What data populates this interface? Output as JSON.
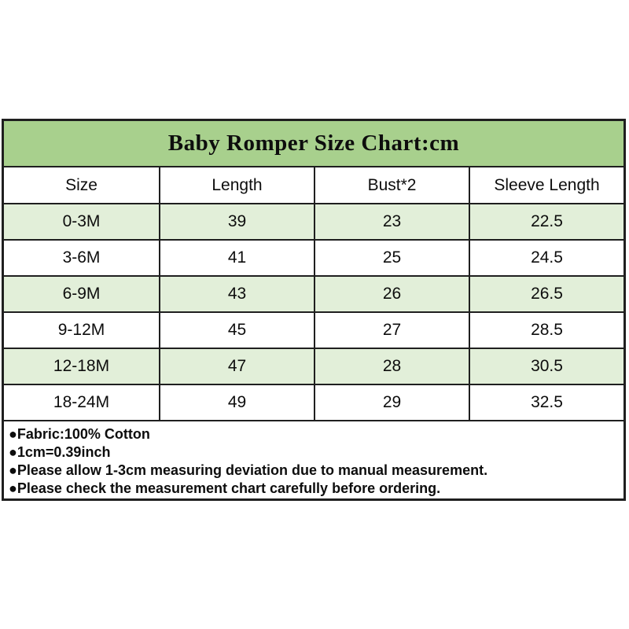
{
  "title": "Baby Romper Size Chart:cm",
  "chart_data": {
    "type": "table",
    "title": "Baby Romper Size Chart:cm",
    "unit": "cm",
    "columns": [
      "Size",
      "Length",
      "Bust*2",
      "Sleeve Length"
    ],
    "rows": [
      [
        "0-3M",
        "39",
        "23",
        "22.5"
      ],
      [
        "3-6M",
        "41",
        "25",
        "24.5"
      ],
      [
        "6-9M",
        "43",
        "26",
        "26.5"
      ],
      [
        "9-12M",
        "45",
        "27",
        "28.5"
      ],
      [
        "12-18M",
        "47",
        "28",
        "30.5"
      ],
      [
        "18-24M",
        "49",
        "29",
        "32.5"
      ]
    ]
  },
  "notes": [
    "●Fabric:100% Cotton",
    "●1cm=0.39inch",
    "●Please allow 1-3cm measuring deviation due to manual measurement.",
    "●Please check the measurement chart carefully before ordering."
  ],
  "colors": {
    "title_bg": "#a8d08d",
    "zebra_row_bg": "#e2efd9",
    "row_bg": "#ffffff",
    "border": "#1f1f1f",
    "text": "#0d0d0d"
  }
}
